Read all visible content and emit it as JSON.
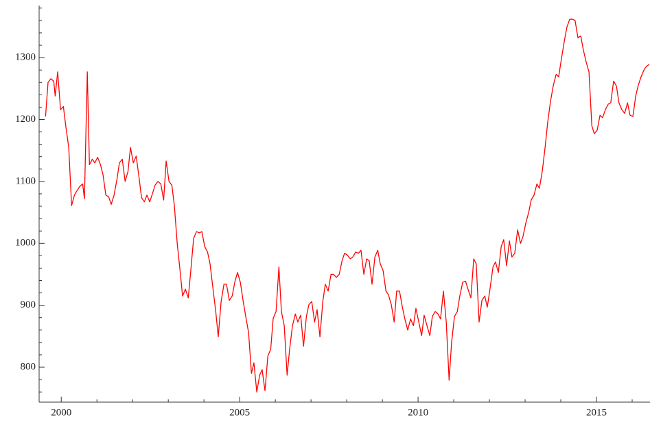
{
  "chart_data": {
    "type": "line",
    "color": "#ff0000",
    "xlim": [
      1999.38,
      2016.5
    ],
    "ylim": [
      743.6,
      1382
    ],
    "xticks": [
      2000,
      2005,
      2010,
      2015
    ],
    "xminorticks": [
      2001,
      2002,
      2003,
      2004,
      2006,
      2007,
      2008,
      2009,
      2011,
      2012,
      2013,
      2014,
      2016
    ],
    "yticks": [
      800,
      900,
      1000,
      1100,
      1200,
      1300
    ],
    "yminorticks": [
      760,
      780,
      820,
      840,
      860,
      880,
      920,
      940,
      960,
      980,
      1020,
      1040,
      1060,
      1080,
      1120,
      1140,
      1160,
      1180,
      1220,
      1240,
      1260,
      1280,
      1320,
      1340,
      1360,
      1380
    ],
    "x": [
      1999.56,
      1999.63,
      1999.71,
      1999.79,
      1999.83,
      1999.9,
      1999.98,
      2000.06,
      2000.13,
      2000.21,
      2000.29,
      2000.37,
      2000.44,
      2000.52,
      2000.6,
      2000.65,
      2000.73,
      2000.79,
      2000.87,
      2000.94,
      2001.02,
      2001.1,
      2001.17,
      2001.25,
      2001.33,
      2001.4,
      2001.48,
      2001.56,
      2001.63,
      2001.71,
      2001.79,
      2001.87,
      2001.94,
      2002.02,
      2002.1,
      2002.17,
      2002.25,
      2002.33,
      2002.4,
      2002.48,
      2002.56,
      2002.63,
      2002.71,
      2002.79,
      2002.87,
      2002.94,
      2003.02,
      2003.1,
      2003.17,
      2003.25,
      2003.33,
      2003.4,
      2003.48,
      2003.56,
      2003.63,
      2003.71,
      2003.79,
      2003.87,
      2003.94,
      2004.02,
      2004.1,
      2004.17,
      2004.25,
      2004.33,
      2004.4,
      2004.48,
      2004.56,
      2004.63,
      2004.71,
      2004.79,
      2004.87,
      2004.94,
      2005.02,
      2005.1,
      2005.17,
      2005.25,
      2005.33,
      2005.4,
      2005.48,
      2005.56,
      2005.63,
      2005.71,
      2005.79,
      2005.87,
      2005.94,
      2006.02,
      2006.1,
      2006.17,
      2006.25,
      2006.33,
      2006.4,
      2006.48,
      2006.56,
      2006.63,
      2006.71,
      2006.79,
      2006.87,
      2006.94,
      2007.02,
      2007.1,
      2007.17,
      2007.25,
      2007.33,
      2007.4,
      2007.48,
      2007.56,
      2007.63,
      2007.71,
      2007.79,
      2007.87,
      2007.94,
      2008.02,
      2008.1,
      2008.17,
      2008.25,
      2008.33,
      2008.4,
      2008.48,
      2008.56,
      2008.63,
      2008.71,
      2008.79,
      2008.87,
      2008.94,
      2009.02,
      2009.1,
      2009.17,
      2009.25,
      2009.33,
      2009.4,
      2009.48,
      2009.56,
      2009.63,
      2009.71,
      2009.79,
      2009.87,
      2009.94,
      2010.02,
      2010.1,
      2010.17,
      2010.25,
      2010.33,
      2010.4,
      2010.48,
      2010.56,
      2010.63,
      2010.71,
      2010.79,
      2010.87,
      2010.94,
      2011.02,
      2011.1,
      2011.17,
      2011.25,
      2011.33,
      2011.4,
      2011.48,
      2011.56,
      2011.63,
      2011.71,
      2011.79,
      2011.87,
      2011.94,
      2012.02,
      2012.1,
      2012.17,
      2012.25,
      2012.33,
      2012.4,
      2012.48,
      2012.56,
      2012.63,
      2012.71,
      2012.79,
      2012.87,
      2012.94,
      2013.02,
      2013.1,
      2013.17,
      2013.25,
      2013.33,
      2013.4,
      2013.48,
      2013.56,
      2013.63,
      2013.71,
      2013.79,
      2013.87,
      2013.94,
      2014.02,
      2014.1,
      2014.17,
      2014.25,
      2014.33,
      2014.4,
      2014.48,
      2014.56,
      2014.63,
      2014.71,
      2014.79,
      2014.87,
      2014.94,
      2015.02,
      2015.1,
      2015.17,
      2015.25,
      2015.33,
      2015.4,
      2015.48,
      2015.56,
      2015.63,
      2015.71,
      2015.79,
      2015.87,
      2015.94,
      2016.02,
      2016.1,
      2016.17,
      2016.25,
      2016.33,
      2016.4,
      2016.48
    ],
    "values": [
      1205,
      1260,
      1266,
      1262,
      1238,
      1277,
      1216,
      1221,
      1188,
      1155,
      1061,
      1078,
      1085,
      1092,
      1096,
      1072,
      1277,
      1127,
      1136,
      1130,
      1139,
      1127,
      1111,
      1078,
      1075,
      1063,
      1078,
      1103,
      1130,
      1136,
      1100,
      1116,
      1155,
      1130,
      1141,
      1111,
      1074,
      1067,
      1078,
      1067,
      1081,
      1094,
      1100,
      1096,
      1070,
      1133,
      1100,
      1094,
      1061,
      1000,
      956,
      915,
      926,
      912,
      956,
      1008,
      1019,
      1017,
      1019,
      995,
      986,
      967,
      928,
      890,
      849,
      906,
      934,
      934,
      908,
      915,
      939,
      953,
      937,
      906,
      882,
      856,
      790,
      807,
      760,
      787,
      796,
      762,
      818,
      829,
      879,
      890,
      962,
      890,
      867,
      787,
      829,
      867,
      886,
      873,
      884,
      834,
      882,
      901,
      906,
      873,
      893,
      849,
      906,
      934,
      923,
      950,
      950,
      945,
      950,
      972,
      984,
      981,
      975,
      978,
      986,
      984,
      989,
      950,
      975,
      972,
      934,
      978,
      989,
      967,
      956,
      923,
      917,
      901,
      873,
      923,
      923,
      897,
      878,
      860,
      878,
      867,
      895,
      873,
      851,
      884,
      867,
      851,
      882,
      890,
      886,
      878,
      923,
      873,
      779,
      840,
      882,
      890,
      915,
      937,
      939,
      926,
      912,
      975,
      967,
      873,
      908,
      915,
      897,
      928,
      962,
      970,
      953,
      995,
      1006,
      964,
      1004,
      978,
      984,
      1022,
      1000,
      1011,
      1033,
      1050,
      1070,
      1078,
      1096,
      1089,
      1116,
      1155,
      1194,
      1229,
      1255,
      1273,
      1269,
      1299,
      1327,
      1349,
      1362,
      1362,
      1360,
      1332,
      1335,
      1313,
      1293,
      1277,
      1190,
      1177,
      1183,
      1207,
      1203,
      1216,
      1225,
      1227,
      1262,
      1254,
      1227,
      1216,
      1210,
      1227,
      1207,
      1205,
      1238,
      1255,
      1269,
      1280,
      1286,
      1289
    ]
  }
}
